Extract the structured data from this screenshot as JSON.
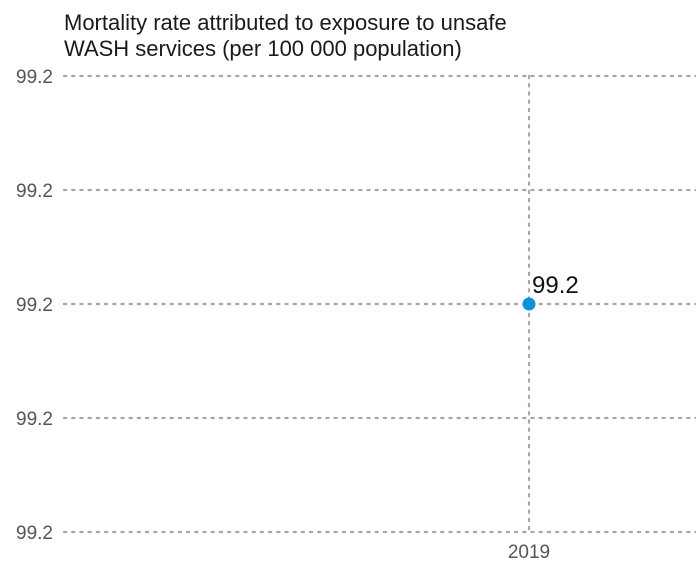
{
  "chart_data": {
    "type": "line",
    "title_lines": [
      "Mortality rate attributed to exposure to unsafe",
      "WASH services (per 100 000 population)"
    ],
    "xlabel": "",
    "ylabel": "",
    "x": [
      "2019"
    ],
    "series": [
      {
        "values": [
          99.2
        ],
        "labels": [
          "99.2"
        ]
      }
    ],
    "y_tick_labels": [
      "99.2",
      "99.2",
      "99.2",
      "99.2",
      "99.2"
    ],
    "x_tick_labels": [
      "2019"
    ],
    "grid": true,
    "colors": {
      "point": "#0a93d6",
      "grid": "#a6a6a6"
    }
  }
}
